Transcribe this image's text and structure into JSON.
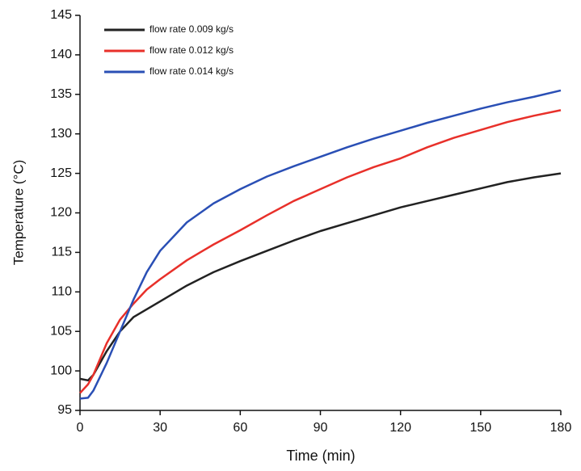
{
  "chart_data": {
    "type": "line",
    "x_label": "Time (min)",
    "y_label": "Temperature (°C)",
    "x": [
      0,
      3,
      5,
      10,
      15,
      20,
      25,
      30,
      40,
      50,
      60,
      70,
      80,
      90,
      100,
      110,
      120,
      130,
      140,
      150,
      160,
      170,
      180
    ],
    "series": [
      {
        "name": "flow rate 0.009 kg/s",
        "color": "#222222",
        "values": [
          99,
          98.8,
          99.5,
          102.5,
          105,
          106.8,
          107.8,
          108.8,
          110.8,
          112.5,
          113.9,
          115.2,
          116.5,
          117.7,
          118.7,
          119.7,
          120.7,
          121.5,
          122.3,
          123.1,
          123.9,
          124.5,
          125
        ]
      },
      {
        "name": "flow rate 0.012 kg/s",
        "color": "#e8302a",
        "values": [
          97.2,
          98.3,
          99.5,
          103.5,
          106.5,
          108.5,
          110.3,
          111.6,
          114,
          116,
          117.8,
          119.7,
          121.5,
          123,
          124.5,
          125.8,
          126.9,
          128.3,
          129.5,
          130.5,
          131.5,
          132.3,
          133
        ]
      },
      {
        "name": "flow rate 0.014 kg/s",
        "color": "#2a4fb5",
        "values": [
          96.5,
          96.6,
          97.5,
          101,
          105,
          109,
          112.5,
          115.2,
          118.8,
          121.2,
          123,
          124.6,
          125.9,
          127.1,
          128.3,
          129.4,
          130.4,
          131.4,
          132.3,
          133.2,
          134,
          134.7,
          135.5
        ]
      }
    ],
    "xlim": [
      0,
      180
    ],
    "xticks": [
      0,
      30,
      60,
      90,
      120,
      150,
      180
    ],
    "ylim": [
      95,
      145
    ],
    "yticks": [
      95,
      100,
      105,
      110,
      115,
      120,
      125,
      130,
      135,
      140,
      145
    ],
    "grid": false,
    "legend": "upper left"
  }
}
